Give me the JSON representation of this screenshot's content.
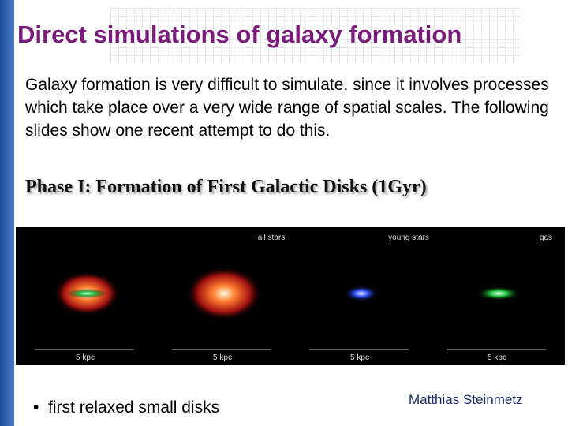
{
  "title": "Direct simulations of galaxy formation",
  "body": "Galaxy formation is very difficult to simulate, since it involves processes which take place over a very wide range of spatial scales. The following slides show one recent attempt to do this.",
  "subtitle": "Phase I: Formation of First Galactic Disks (1Gyr)",
  "panels": [
    {
      "scale": "5 kpc"
    },
    {
      "label": "all stars",
      "scale": "5 kpc"
    },
    {
      "label": "young stars",
      "scale": "5 kpc"
    },
    {
      "label": "gas",
      "scale": "5 kpc"
    }
  ],
  "bullet": "first relaxed small disks",
  "author": "Matthias Steinmetz"
}
